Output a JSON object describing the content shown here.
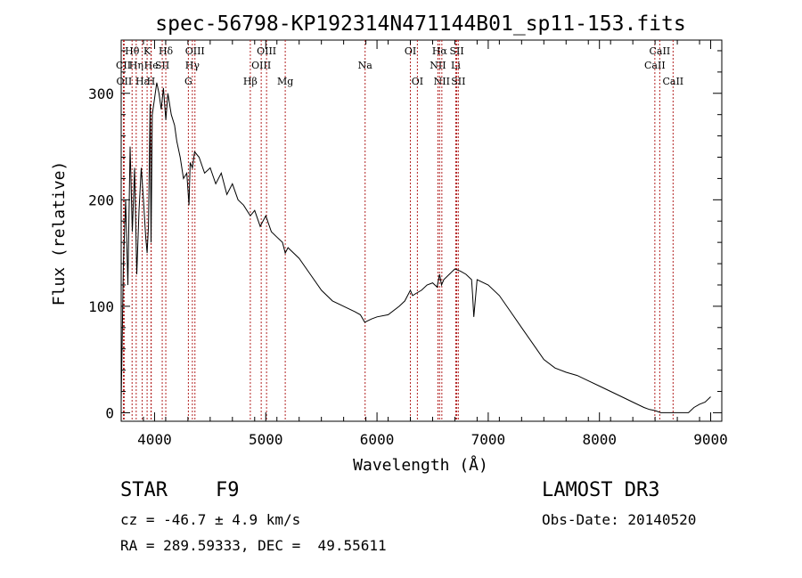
{
  "chart_data": {
    "type": "line",
    "title": "spec-56798-KP192314N471144B01_sp11-153.fits",
    "xlabel": "Wavelength (Å)",
    "ylabel": "Flux (relative)",
    "xlim": [
      3700,
      9100
    ],
    "ylim": [
      -8,
      350
    ],
    "xticks": [
      4000,
      5000,
      6000,
      7000,
      8000,
      9000
    ],
    "yticks": [
      0,
      100,
      200,
      300
    ],
    "grid": false,
    "series": [
      {
        "name": "flux",
        "x": [
          3700,
          3720,
          3740,
          3760,
          3780,
          3800,
          3820,
          3840,
          3860,
          3880,
          3900,
          3920,
          3933,
          3945,
          3960,
          3968,
          3980,
          4000,
          4020,
          4040,
          4060,
          4080,
          4101,
          4120,
          4150,
          4180,
          4200,
          4230,
          4260,
          4290,
          4310,
          4320,
          4340,
          4360,
          4400,
          4450,
          4500,
          4550,
          4600,
          4650,
          4700,
          4750,
          4800,
          4861,
          4900,
          4950,
          5000,
          5050,
          5100,
          5150,
          5175,
          5200,
          5300,
          5400,
          5500,
          5600,
          5700,
          5800,
          5850,
          5890,
          5950,
          6000,
          6100,
          6200,
          6250,
          6300,
          6320,
          6350,
          6400,
          6450,
          6500,
          6540,
          6563,
          6580,
          6600,
          6650,
          6700,
          6750,
          6800,
          6850,
          6860,
          6870,
          6900,
          7000,
          7100,
          7200,
          7300,
          7400,
          7500,
          7600,
          7700,
          7800,
          7900,
          8000,
          8100,
          8200,
          8300,
          8400,
          8450,
          8500,
          8550,
          8600,
          8650,
          8700,
          8750,
          8800,
          8850,
          8900,
          8950,
          9000
        ],
        "y": [
          10,
          140,
          200,
          120,
          250,
          170,
          230,
          130,
          190,
          230,
          200,
          165,
          150,
          175,
          290,
          160,
          280,
          295,
          310,
          300,
          285,
          305,
          275,
          300,
          280,
          270,
          255,
          240,
          220,
          225,
          195,
          235,
          230,
          245,
          240,
          225,
          230,
          215,
          225,
          205,
          215,
          200,
          195,
          185,
          190,
          175,
          185,
          170,
          165,
          160,
          150,
          155,
          145,
          130,
          115,
          105,
          100,
          95,
          92,
          85,
          88,
          90,
          92,
          100,
          105,
          115,
          110,
          112,
          115,
          120,
          122,
          118,
          130,
          120,
          125,
          130,
          135,
          133,
          130,
          125,
          110,
          90,
          125,
          120,
          110,
          95,
          80,
          65,
          50,
          42,
          38,
          35,
          30,
          25,
          20,
          15,
          10,
          5,
          3,
          2,
          0,
          0,
          0,
          0,
          0,
          0,
          5,
          8,
          10,
          15
        ]
      }
    ],
    "lines": [
      {
        "label": "CII",
        "wave": 3720,
        "row": 2
      },
      {
        "label": "OII",
        "wave": 3727,
        "row": 3
      },
      {
        "label": "Hθ",
        "wave": 3798,
        "row": 1
      },
      {
        "label": "Hη",
        "wave": 3835,
        "row": 2
      },
      {
        "label": "Hε",
        "wave": 3889,
        "row": 3
      },
      {
        "label": "K",
        "wave": 3933,
        "row": 1
      },
      {
        "label": "He",
        "wave": 3970,
        "row": 2
      },
      {
        "label": "H",
        "wave": 3968,
        "row": 3
      },
      {
        "label": "SII",
        "wave": 4069,
        "row": 2
      },
      {
        "label": "Hδ",
        "wave": 4101,
        "row": 1
      },
      {
        "label": "G",
        "wave": 4304,
        "row": 3
      },
      {
        "label": "Hγ",
        "wave": 4340,
        "row": 2
      },
      {
        "label": "OIII",
        "wave": 4363,
        "row": 1
      },
      {
        "label": "Hβ",
        "wave": 4861,
        "row": 3
      },
      {
        "label": "OIII",
        "wave": 4959,
        "row": 2
      },
      {
        "label": "OIII",
        "wave": 5007,
        "row": 1
      },
      {
        "label": "Mg",
        "wave": 5175,
        "row": 3
      },
      {
        "label": "Na",
        "wave": 5893,
        "row": 2
      },
      {
        "label": "OI",
        "wave": 6300,
        "row": 1
      },
      {
        "label": "OI",
        "wave": 6363,
        "row": 3
      },
      {
        "label": "NII",
        "wave": 6548,
        "row": 2
      },
      {
        "label": "NII",
        "wave": 6583,
        "row": 3
      },
      {
        "label": "Hα",
        "wave": 6563,
        "row": 1
      },
      {
        "label": "SII",
        "wave": 6717,
        "row": 1
      },
      {
        "label": "SII",
        "wave": 6731,
        "row": 3
      },
      {
        "label": "Li",
        "wave": 6708,
        "row": 2
      },
      {
        "label": "CaII",
        "wave": 8498,
        "row": 2
      },
      {
        "label": "CaII",
        "wave": 8542,
        "row": 1
      },
      {
        "label": "CaII",
        "wave": 8662,
        "row": 3
      }
    ]
  },
  "info": {
    "object_type": "STAR",
    "subclass": "F9",
    "survey": "LAMOST DR3",
    "cz": "cz = -46.7 ± 4.9 km/s",
    "obs_date": "Obs-Date: 20140520",
    "coords": "RA = 289.59333, DEC =  49.55611"
  }
}
